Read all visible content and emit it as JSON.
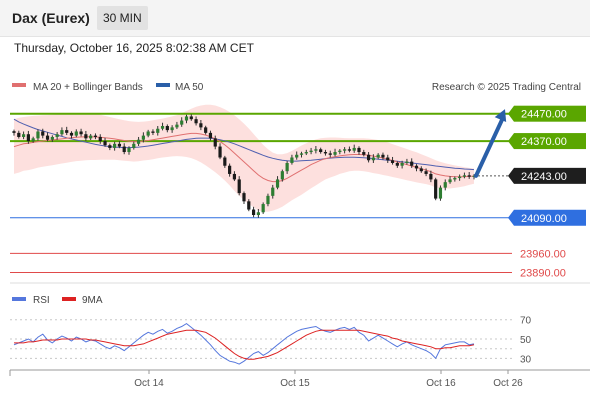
{
  "header": {
    "title": "Dax (Eurex)",
    "timeframe": "30 MIN"
  },
  "datetime": "Thursday, October 16, 2025 8:02:38 AM CET",
  "credit": "Research © 2025 Trading Central",
  "colors": {
    "resistance": "#5aa600",
    "support": "#2f6fe0",
    "target": "#e04a4a",
    "arrow": "#2a5fa8",
    "ma20": "#e07070",
    "ma50": "#5060b0",
    "rsi": "#5577dd",
    "rsi_ma": "#dd2222",
    "band_fill": "#fde0de"
  },
  "chart_data": [
    {
      "type": "line",
      "legend": [
        "MA 20 + Bollinger Bands",
        "MA 50"
      ],
      "x_ticks": [
        "Oct 14",
        "Oct 15",
        "Oct 16",
        "Oct 26"
      ],
      "ylim": [
        23870,
        24520
      ],
      "levels": [
        {
          "value": 24470.0,
          "label": "24470.00",
          "kind": "resistance"
        },
        {
          "value": 24370.0,
          "label": "24370.00",
          "kind": "resistance"
        },
        {
          "value": 24243.0,
          "label": "24243.00",
          "kind": "last_price"
        },
        {
          "value": 24090.0,
          "label": "24090.00",
          "kind": "support"
        },
        {
          "value": 23960.0,
          "label": "23960.00",
          "kind": "target"
        },
        {
          "value": 23890.0,
          "label": "23890.00",
          "kind": "target"
        }
      ],
      "closes": [
        24400,
        24385,
        24395,
        24370,
        24380,
        24405,
        24390,
        24375,
        24385,
        24395,
        24410,
        24400,
        24390,
        24405,
        24395,
        24380,
        24390,
        24385,
        24370,
        24355,
        24345,
        24360,
        24350,
        24330,
        24345,
        24360,
        24375,
        24390,
        24405,
        24400,
        24415,
        24425,
        24410,
        24420,
        24430,
        24445,
        24460,
        24450,
        24435,
        24420,
        24400,
        24380,
        24350,
        24310,
        24280,
        24250,
        24230,
        24180,
        24150,
        24120,
        24100,
        24110,
        24140,
        24170,
        24200,
        24230,
        24260,
        24290,
        24310,
        24320,
        24325,
        24330,
        24335,
        24340,
        24330,
        24325,
        24320,
        24330,
        24335,
        24340,
        24335,
        24345,
        24330,
        24320,
        24300,
        24310,
        24320,
        24310,
        24300,
        24290,
        24280,
        24290,
        24295,
        24280,
        24270,
        24260,
        24250,
        24230,
        24160,
        24200,
        24220,
        24230,
        24235,
        24240,
        24245,
        24240,
        24243
      ],
      "ma20": [
        24350,
        24355,
        24360,
        24362,
        24365,
        24368,
        24370,
        24372,
        24374,
        24376,
        24378,
        24380,
        24382,
        24384,
        24385,
        24386,
        24386,
        24385,
        24384,
        24382,
        24380,
        24378,
        24375,
        24372,
        24370,
        24368,
        24368,
        24370,
        24372,
        24375,
        24378,
        24381,
        24384,
        24387,
        24390,
        24393,
        24396,
        24398,
        24398,
        24396,
        24392,
        24386,
        24378,
        24368,
        24356,
        24342,
        24326,
        24310,
        24294,
        24278,
        24262,
        24246,
        24234,
        24226,
        24222,
        24222,
        24226,
        24234,
        24244,
        24254,
        24264,
        24274,
        24284,
        24292,
        24300,
        24306,
        24310,
        24313,
        24316,
        24318,
        24320,
        24321,
        24321,
        24320,
        24318,
        24315,
        24312,
        24308,
        24304,
        24299,
        24294,
        24289,
        24284,
        24279,
        24274,
        24269,
        24264,
        24258,
        24250,
        24246,
        24243,
        24241,
        24240,
        24240,
        24240,
        24241,
        24242
      ],
      "bb_upper": [
        24450,
        24455,
        24458,
        24460,
        24462,
        24463,
        24464,
        24465,
        24466,
        24467,
        24468,
        24469,
        24470,
        24471,
        24472,
        24472,
        24471,
        24469,
        24466,
        24462,
        24458,
        24454,
        24450,
        24446,
        24443,
        24441,
        24440,
        24441,
        24443,
        24446,
        24449,
        24452,
        24456,
        24460,
        24465,
        24472,
        24480,
        24488,
        24495,
        24500,
        24503,
        24503,
        24500,
        24494,
        24486,
        24476,
        24464,
        24450,
        24434,
        24416,
        24396,
        24376,
        24356,
        24340,
        24328,
        24322,
        24322,
        24326,
        24334,
        24344,
        24354,
        24362,
        24370,
        24376,
        24380,
        24382,
        24383,
        24383,
        24382,
        24381,
        24380,
        24380,
        24380,
        24380,
        24379,
        24377,
        24374,
        24370,
        24365,
        24359,
        24353,
        24347,
        24341,
        24335,
        24329,
        24322,
        24315,
        24308,
        24300,
        24294,
        24289,
        24285,
        24281,
        24278,
        24275,
        24272,
        24270
      ],
      "bb_lower": [
        24250,
        24255,
        24262,
        24264,
        24268,
        24273,
        24276,
        24279,
        24282,
        24285,
        24288,
        24291,
        24294,
        24297,
        24298,
        24300,
        24301,
        24301,
        24302,
        24302,
        24302,
        24302,
        24300,
        24298,
        24297,
        24295,
        24296,
        24299,
        24301,
        24304,
        24307,
        24310,
        24312,
        24314,
        24315,
        24314,
        24312,
        24308,
        24301,
        24292,
        24281,
        24269,
        24256,
        24242,
        24226,
        24208,
        24188,
        24170,
        24154,
        24140,
        24128,
        24116,
        24112,
        24112,
        24116,
        24122,
        24130,
        24142,
        24154,
        24164,
        24174,
        24186,
        24198,
        24208,
        24220,
        24230,
        24237,
        24243,
        24250,
        24255,
        24260,
        24262,
        24262,
        24260,
        24257,
        24253,
        24250,
        24246,
        24243,
        24239,
        24235,
        24231,
        24227,
        24223,
        24219,
        24216,
        24213,
        24208,
        24200,
        24198,
        24197,
        24197,
        24199,
        24202,
        24205,
        24210,
        24214
      ],
      "ma50": [
        24450,
        24440,
        24432,
        24425,
        24418,
        24412,
        24407,
        24402,
        24397,
        24392,
        24387,
        24382,
        24378,
        24374,
        24370,
        24366,
        24362,
        24358,
        24355,
        24352,
        24350,
        24348,
        24347,
        24346,
        24346,
        24347,
        24348,
        24350,
        24352,
        24355,
        24358,
        24361,
        24364,
        24367,
        24370,
        24373,
        24376,
        24378,
        24380,
        24381,
        24381,
        24380,
        24378,
        24375,
        24371,
        24366,
        24360,
        24353,
        24346,
        24339,
        24332,
        24325,
        24318,
        24312,
        24307,
        24303,
        24300,
        24298,
        24297,
        24297,
        24298,
        24299,
        24300,
        24302,
        24304,
        24306,
        24308,
        24309,
        24310,
        24311,
        24311,
        24311,
        24310,
        24309,
        24308,
        24306,
        24304,
        24302,
        24300,
        24298,
        24296,
        24294,
        24292,
        24290,
        24288,
        24286,
        24284,
        24282,
        24279,
        24277,
        24275,
        24273,
        24271,
        24270,
        24268,
        24267,
        24266
      ],
      "projection": {
        "from": 24243.0,
        "to": 24470.0
      }
    },
    {
      "type": "line",
      "legend": [
        "RSI",
        "9MA"
      ],
      "ylim": [
        20,
        78
      ],
      "y_ticks": [
        70,
        50,
        40,
        30
      ],
      "rsi": [
        44,
        46,
        48,
        50,
        47,
        52,
        55,
        49,
        46,
        50,
        53,
        51,
        48,
        52,
        50,
        47,
        49,
        48,
        45,
        42,
        40,
        43,
        41,
        38,
        42,
        46,
        50,
        54,
        57,
        55,
        58,
        60,
        56,
        58,
        61,
        63,
        66,
        62,
        58,
        54,
        49,
        44,
        38,
        33,
        30,
        27,
        26,
        24,
        27,
        31,
        35,
        37,
        33,
        36,
        40,
        44,
        48,
        52,
        55,
        58,
        60,
        61,
        62,
        63,
        60,
        58,
        57,
        59,
        61,
        62,
        60,
        62,
        57,
        54,
        48,
        51,
        54,
        51,
        48,
        45,
        42,
        45,
        47,
        44,
        42,
        40,
        38,
        35,
        30,
        40,
        44,
        45,
        46,
        47,
        47,
        44,
        45
      ],
      "rsi_ma": [
        46,
        46,
        46,
        47,
        47,
        48,
        49,
        49,
        49,
        49,
        50,
        50,
        50,
        50,
        50,
        50,
        49,
        49,
        48,
        47,
        46,
        45,
        44,
        43,
        43,
        43,
        44,
        45,
        47,
        49,
        51,
        53,
        55,
        56,
        57,
        58,
        59,
        59,
        59,
        58,
        57,
        54,
        51,
        47,
        43,
        39,
        35,
        32,
        30,
        29,
        29,
        30,
        31,
        32,
        34,
        36,
        39,
        42,
        45,
        48,
        51,
        54,
        56,
        58,
        59,
        59,
        59,
        59,
        59,
        59,
        59,
        59,
        59,
        58,
        57,
        56,
        55,
        54,
        53,
        51,
        50,
        48,
        47,
        46,
        45,
        44,
        43,
        42,
        40,
        40,
        41,
        41,
        42,
        43,
        43,
        43,
        44
      ]
    }
  ]
}
